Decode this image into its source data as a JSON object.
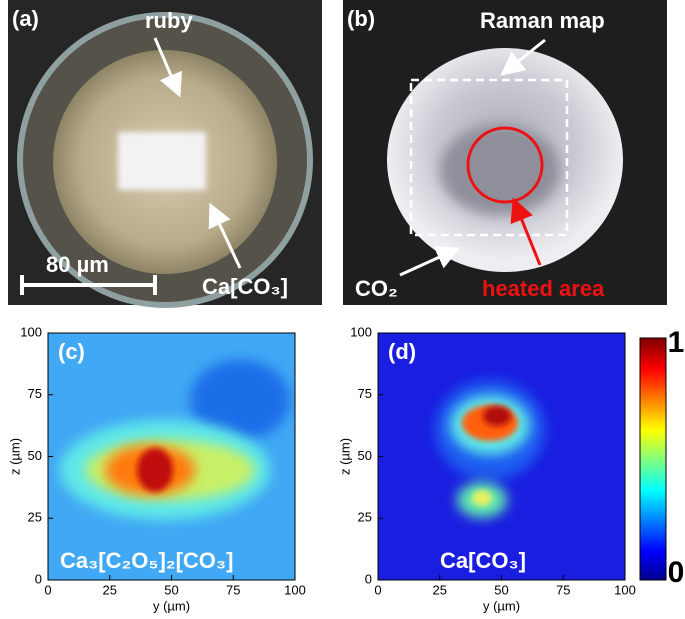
{
  "photos": [
    {
      "label": "(a)",
      "annotations": [
        "ruby",
        "Ca[CO₃]"
      ],
      "scale_bar": "80 µm"
    },
    {
      "label": "(b)",
      "annotations": [
        "Raman map",
        "CO₂",
        "heated area"
      ]
    }
  ],
  "maps": [
    {
      "label": "(c)",
      "compound": "Ca₃[C₂O₅]₂[CO₃]",
      "xlabel": "y (µm)",
      "ylabel": "z (µm)",
      "xlim": [
        0,
        100
      ],
      "ylim": [
        0,
        100
      ],
      "xticks": [
        0,
        25,
        50,
        75,
        100
      ],
      "yticks": [
        0,
        25,
        50,
        75,
        100
      ]
    },
    {
      "label": "(d)",
      "compound": "Ca[CO₃]",
      "xlabel": "y (µm)",
      "ylabel": "z (µm)",
      "xlim": [
        0,
        100
      ],
      "ylim": [
        0,
        100
      ],
      "xticks": [
        0,
        25,
        50,
        75,
        100
      ],
      "yticks": [
        0,
        25,
        50,
        75,
        100
      ]
    }
  ],
  "colorbar": {
    "lim": [
      0,
      1
    ],
    "ticks": [
      0,
      1
    ]
  }
}
